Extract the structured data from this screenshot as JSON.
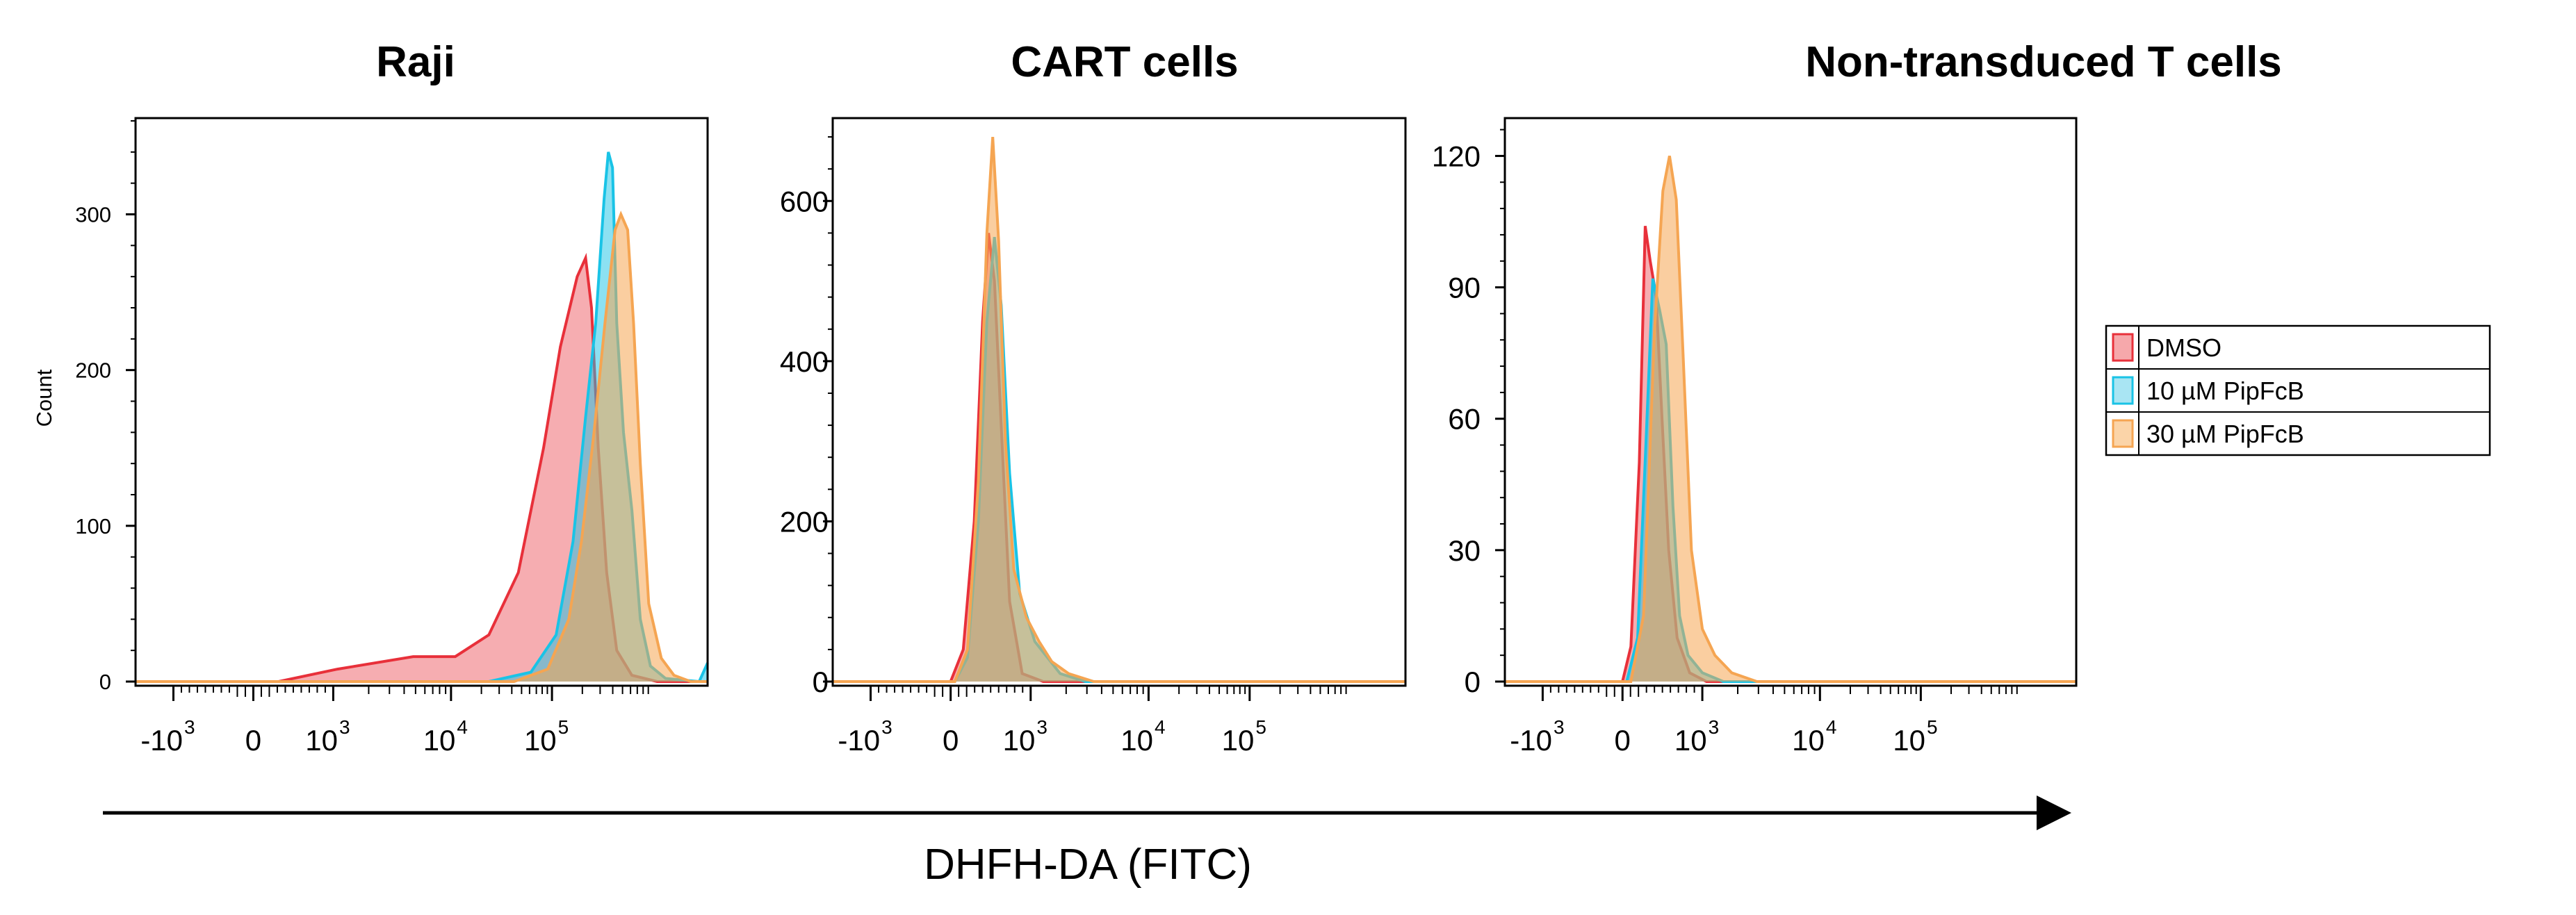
{
  "chart_data": [
    {
      "type": "histogram",
      "title": "Raji",
      "ylabel": "Count",
      "ylim": [
        0,
        360
      ],
      "yticks": [
        0,
        100,
        200,
        300
      ],
      "xticks": [
        "-10",
        "0",
        "10",
        "10",
        "10"
      ],
      "xtick_exponents": [
        "3",
        "",
        "3",
        "4",
        "5"
      ],
      "series": [
        {
          "name": "DMSO",
          "color": "#e8303a",
          "x": [
            -1.4,
            0.3,
            1.0,
            1.9,
            2.4,
            2.8,
            3.15,
            3.45,
            3.65,
            3.85,
            3.95,
            4.02,
            4.1,
            4.2,
            4.32,
            4.5,
            4.8,
            5.4
          ],
          "y": [
            0,
            0,
            8,
            16,
            16,
            30,
            70,
            150,
            215,
            260,
            272,
            240,
            150,
            70,
            20,
            4,
            0,
            0
          ]
        },
        {
          "name": "10 µM PipFcB",
          "color": "#19c3e6",
          "x": [
            -1.4,
            2.8,
            3.3,
            3.6,
            3.8,
            3.95,
            4.07,
            4.17,
            4.22,
            4.27,
            4.32,
            4.4,
            4.5,
            4.6,
            4.72,
            4.9,
            5.3,
            5.4
          ],
          "y": [
            0,
            0,
            6,
            30,
            90,
            170,
            230,
            310,
            340,
            330,
            230,
            160,
            110,
            40,
            10,
            2,
            0,
            12
          ]
        },
        {
          "name": "30 µM PipFcB",
          "color": "#f5a552",
          "x": [
            -1.4,
            3.1,
            3.5,
            3.75,
            3.9,
            4.05,
            4.18,
            4.3,
            4.37,
            4.45,
            4.52,
            4.6,
            4.7,
            4.85,
            5.0,
            5.2,
            5.4
          ],
          "y": [
            0,
            0,
            8,
            40,
            90,
            160,
            230,
            290,
            300,
            290,
            230,
            140,
            50,
            15,
            4,
            0,
            0
          ]
        }
      ]
    },
    {
      "type": "histogram",
      "title": "CART cells",
      "ylim": [
        0,
        700
      ],
      "yticks": [
        0,
        200,
        400,
        600
      ],
      "xticks": [
        "-10",
        "0",
        "10",
        "10",
        "10"
      ],
      "xtick_exponents": [
        "3",
        "",
        "3",
        "4",
        "5"
      ],
      "series": [
        {
          "name": "DMSO",
          "color": "#e8303a",
          "x": [
            -1.4,
            0.0,
            0.15,
            0.28,
            0.38,
            0.45,
            0.52,
            0.6,
            0.7,
            0.85,
            1.1,
            5.4
          ],
          "y": [
            0,
            0,
            40,
            200,
            450,
            560,
            500,
            320,
            100,
            10,
            0,
            0
          ]
        },
        {
          "name": "10 µM PipFcB",
          "color": "#19c3e6",
          "x": [
            -1.4,
            0.05,
            0.2,
            0.33,
            0.43,
            0.52,
            0.6,
            0.7,
            0.82,
            1.0,
            1.3,
            1.6,
            5.4
          ],
          "y": [
            0,
            0,
            30,
            200,
            450,
            555,
            470,
            260,
            110,
            50,
            10,
            0,
            0
          ]
        },
        {
          "name": "30 µM PipFcB",
          "color": "#f5a552",
          "x": [
            -1.4,
            0.05,
            0.2,
            0.33,
            0.43,
            0.5,
            0.57,
            0.65,
            0.75,
            0.9,
            1.05,
            1.2,
            1.4,
            1.7,
            5.4
          ],
          "y": [
            0,
            0,
            40,
            250,
            560,
            680,
            550,
            300,
            140,
            80,
            50,
            25,
            10,
            0,
            0
          ]
        }
      ]
    },
    {
      "type": "histogram",
      "title": "Non-transduced T cells",
      "ylim": [
        0,
        128
      ],
      "yticks": [
        0,
        30,
        60,
        90,
        120
      ],
      "xticks": [
        "-10",
        "0",
        "10",
        "10",
        "10"
      ],
      "xtick_exponents": [
        "3",
        "",
        "3",
        "4",
        "5"
      ],
      "series": [
        {
          "name": "DMSO",
          "color": "#e8303a",
          "x": [
            -1.4,
            0.0,
            0.1,
            0.2,
            0.27,
            0.33,
            0.4,
            0.47,
            0.55,
            0.65,
            0.8,
            1.0,
            5.4
          ],
          "y": [
            0,
            0,
            8,
            50,
            104,
            96,
            88,
            60,
            30,
            10,
            2,
            0,
            0
          ]
        },
        {
          "name": "10 µM PipFcB",
          "color": "#19c3e6",
          "x": [
            -1.4,
            0.05,
            0.18,
            0.28,
            0.36,
            0.44,
            0.52,
            0.6,
            0.68,
            0.78,
            0.95,
            1.2,
            5.4
          ],
          "y": [
            0,
            0,
            10,
            55,
            92,
            85,
            77,
            40,
            15,
            6,
            2,
            0,
            0
          ]
        },
        {
          "name": "30 µM PipFcB",
          "color": "#f5a552",
          "x": [
            -1.4,
            0.1,
            0.25,
            0.38,
            0.48,
            0.56,
            0.64,
            0.72,
            0.82,
            0.95,
            1.1,
            1.3,
            1.6,
            5.4
          ],
          "y": [
            0,
            0,
            15,
            80,
            112,
            120,
            110,
            75,
            30,
            12,
            6,
            2,
            0,
            0
          ]
        }
      ]
    }
  ],
  "legend": [
    {
      "label": "DMSO",
      "color": "#e8303a"
    },
    {
      "label": "10 µM PipFcB",
      "color": "#19c3e6"
    },
    {
      "label": "30 µM PipFcB",
      "color": "#f5a552"
    }
  ],
  "x_axis_label": "DHFH-DA (FITC)"
}
